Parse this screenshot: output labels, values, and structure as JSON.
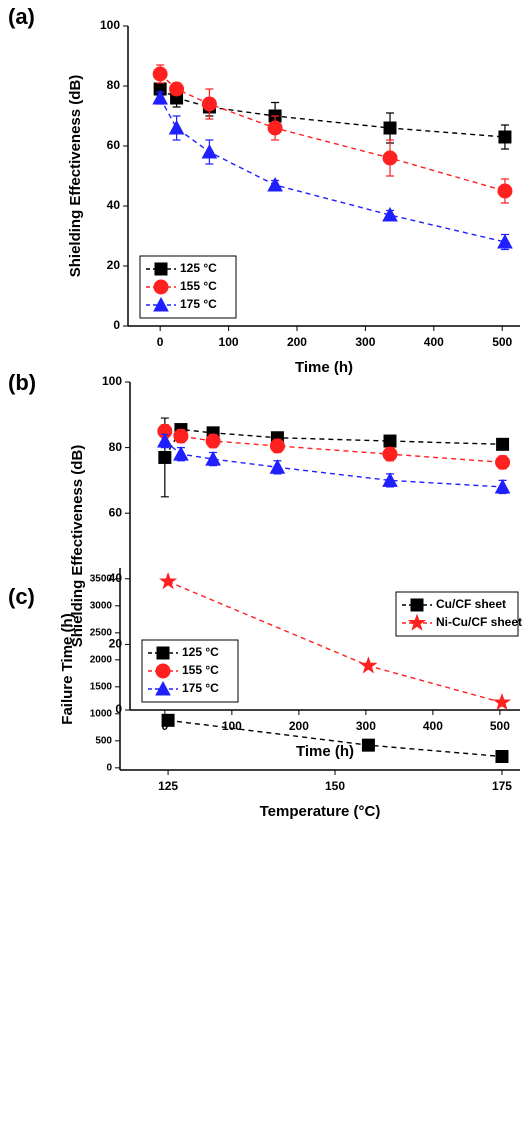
{
  "chart_data": [
    {
      "type": "line",
      "panel_label": "(a)",
      "xlabel": "Time (h)",
      "ylabel": "Shielding Effectiveness (dB)",
      "x": [
        0,
        24,
        72,
        168,
        336,
        504
      ],
      "xlim": [
        -47,
        526
      ],
      "ylim": [
        0,
        100
      ],
      "xticks": [
        0,
        100,
        200,
        300,
        400,
        500
      ],
      "yticks": [
        0,
        20,
        40,
        60,
        80,
        100
      ],
      "legend": "lower left",
      "series": [
        {
          "name": "125 °C",
          "color": "#000000",
          "marker": "square",
          "values": [
            79,
            76,
            73,
            70,
            66,
            63
          ],
          "errors": [
            2,
            3,
            3,
            4.5,
            5,
            4
          ]
        },
        {
          "name": "155 °C",
          "color": "#ff2020",
          "marker": "circle",
          "values": [
            84,
            79,
            74,
            66,
            56,
            45
          ],
          "errors": [
            3,
            2,
            5,
            4,
            6,
            4
          ]
        },
        {
          "name": "175 °C",
          "color": "#2020ff",
          "marker": "triangle",
          "values": [
            76,
            66,
            58,
            47,
            37,
            28
          ],
          "errors": [
            2,
            4,
            4,
            1.5,
            1.5,
            2.5
          ]
        }
      ]
    },
    {
      "type": "line",
      "panel_label": "(b)",
      "xlabel": "Time (h)",
      "ylabel": "Shielding Effectiveness (dB)",
      "x": [
        0,
        24,
        72,
        168,
        336,
        504
      ],
      "xlim": [
        -52,
        530
      ],
      "ylim": [
        0,
        100
      ],
      "xticks": [
        0,
        100,
        200,
        300,
        400,
        500
      ],
      "yticks": [
        0,
        20,
        40,
        60,
        80,
        100
      ],
      "legend": "lower left",
      "series": [
        {
          "name": "125 °C",
          "color": "#000000",
          "marker": "square",
          "values": [
            77,
            85.5,
            84.5,
            83,
            82,
            81
          ],
          "errors": [
            12,
            1,
            1,
            1,
            1,
            1
          ]
        },
        {
          "name": "155 °C",
          "color": "#ff2020",
          "marker": "circle",
          "values": [
            85,
            83.5,
            82,
            80.5,
            78,
            75.5
          ],
          "errors": [
            2,
            2,
            2,
            2,
            2,
            2
          ]
        },
        {
          "name": "175 °C",
          "color": "#2020ff",
          "marker": "triangle",
          "values": [
            82,
            78,
            76.5,
            74,
            70,
            68
          ],
          "errors": [
            2,
            2,
            2,
            2,
            2,
            2
          ]
        }
      ]
    },
    {
      "type": "line",
      "panel_label": "(c)",
      "xlabel": "Temperature (°C)",
      "ylabel": "Failure Time (h)",
      "x": [
        125,
        155,
        175
      ],
      "xlim": [
        117.8,
        177.7
      ],
      "ylim": [
        -40,
        3700
      ],
      "xticks": [
        125,
        150,
        175
      ],
      "yticks": [
        0,
        500,
        1000,
        1500,
        2000,
        2500,
        3000,
        3500
      ],
      "legend": "upper right",
      "series": [
        {
          "name": "Cu/CF sheet",
          "color": "#000000",
          "marker": "square",
          "values": [
            880,
            420,
            210
          ]
        },
        {
          "name": "Ni-Cu/CF sheet",
          "color": "#ff2020",
          "marker": "star",
          "values": [
            3450,
            1890,
            1210
          ]
        }
      ]
    }
  ]
}
